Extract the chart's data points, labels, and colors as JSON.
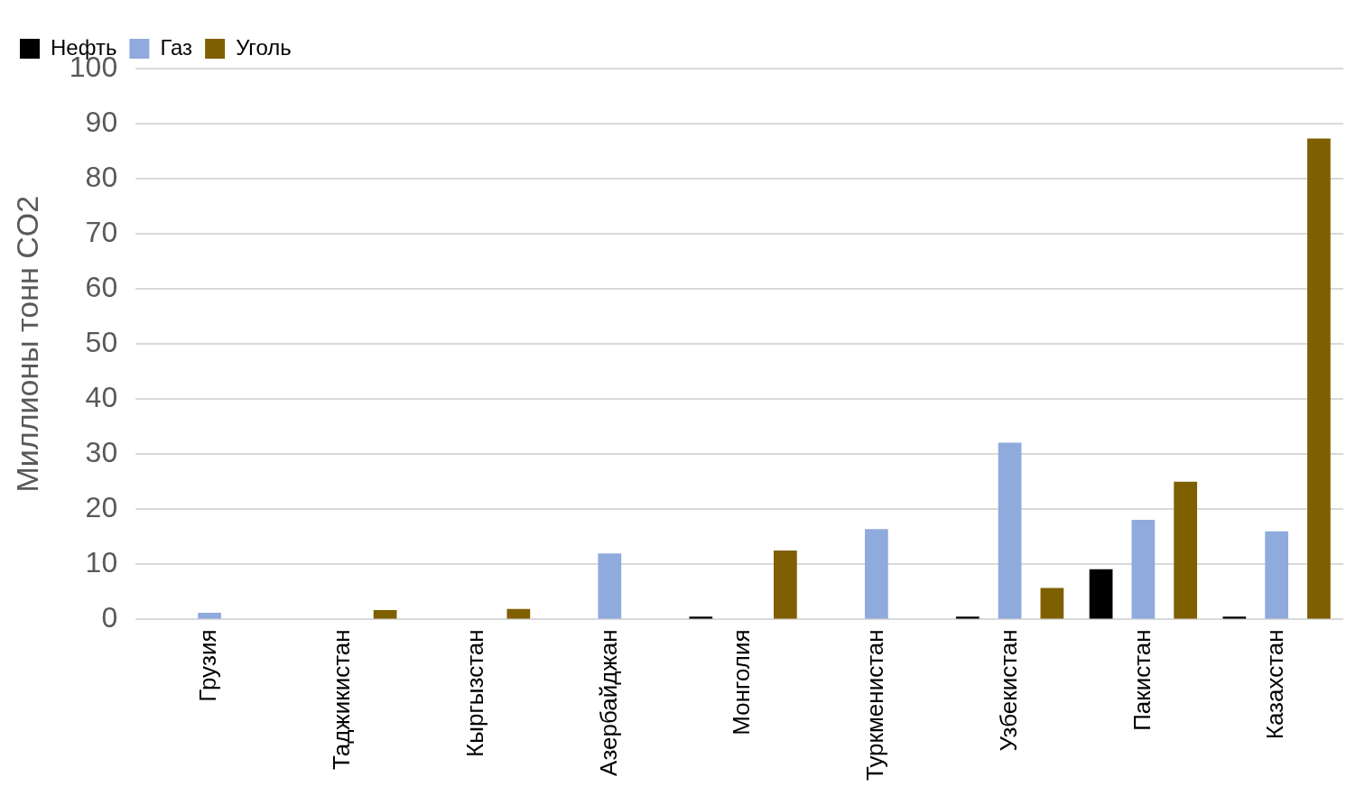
{
  "chart_data": {
    "type": "bar",
    "ylabel": "Миллионы тонн CO2",
    "categories": [
      "Грузия",
      "Таджикистан",
      "Кыргызстан",
      "Азербайджан",
      "Монголия",
      "Туркменистан",
      "Узбекистан",
      "Пакистан",
      "Казахстан"
    ],
    "series": [
      {
        "name": "Нефть",
        "color": "#000000",
        "values": [
          null,
          null,
          null,
          null,
          0.5,
          null,
          0.5,
          9.1,
          0.5
        ]
      },
      {
        "name": "Газ",
        "color": "#8faadc",
        "values": [
          1.2,
          null,
          null,
          12.0,
          null,
          16.4,
          32.1,
          18.1,
          16.0
        ]
      },
      {
        "name": "Уголь",
        "color": "#7f6000",
        "values": [
          null,
          1.7,
          1.9,
          null,
          12.5,
          null,
          5.7,
          25.0,
          87.3
        ]
      }
    ],
    "ylim": [
      0,
      100
    ],
    "yticks": [
      0,
      10,
      20,
      30,
      40,
      50,
      60,
      70,
      80,
      90,
      100
    ],
    "grid": "y",
    "legend": "top left"
  }
}
